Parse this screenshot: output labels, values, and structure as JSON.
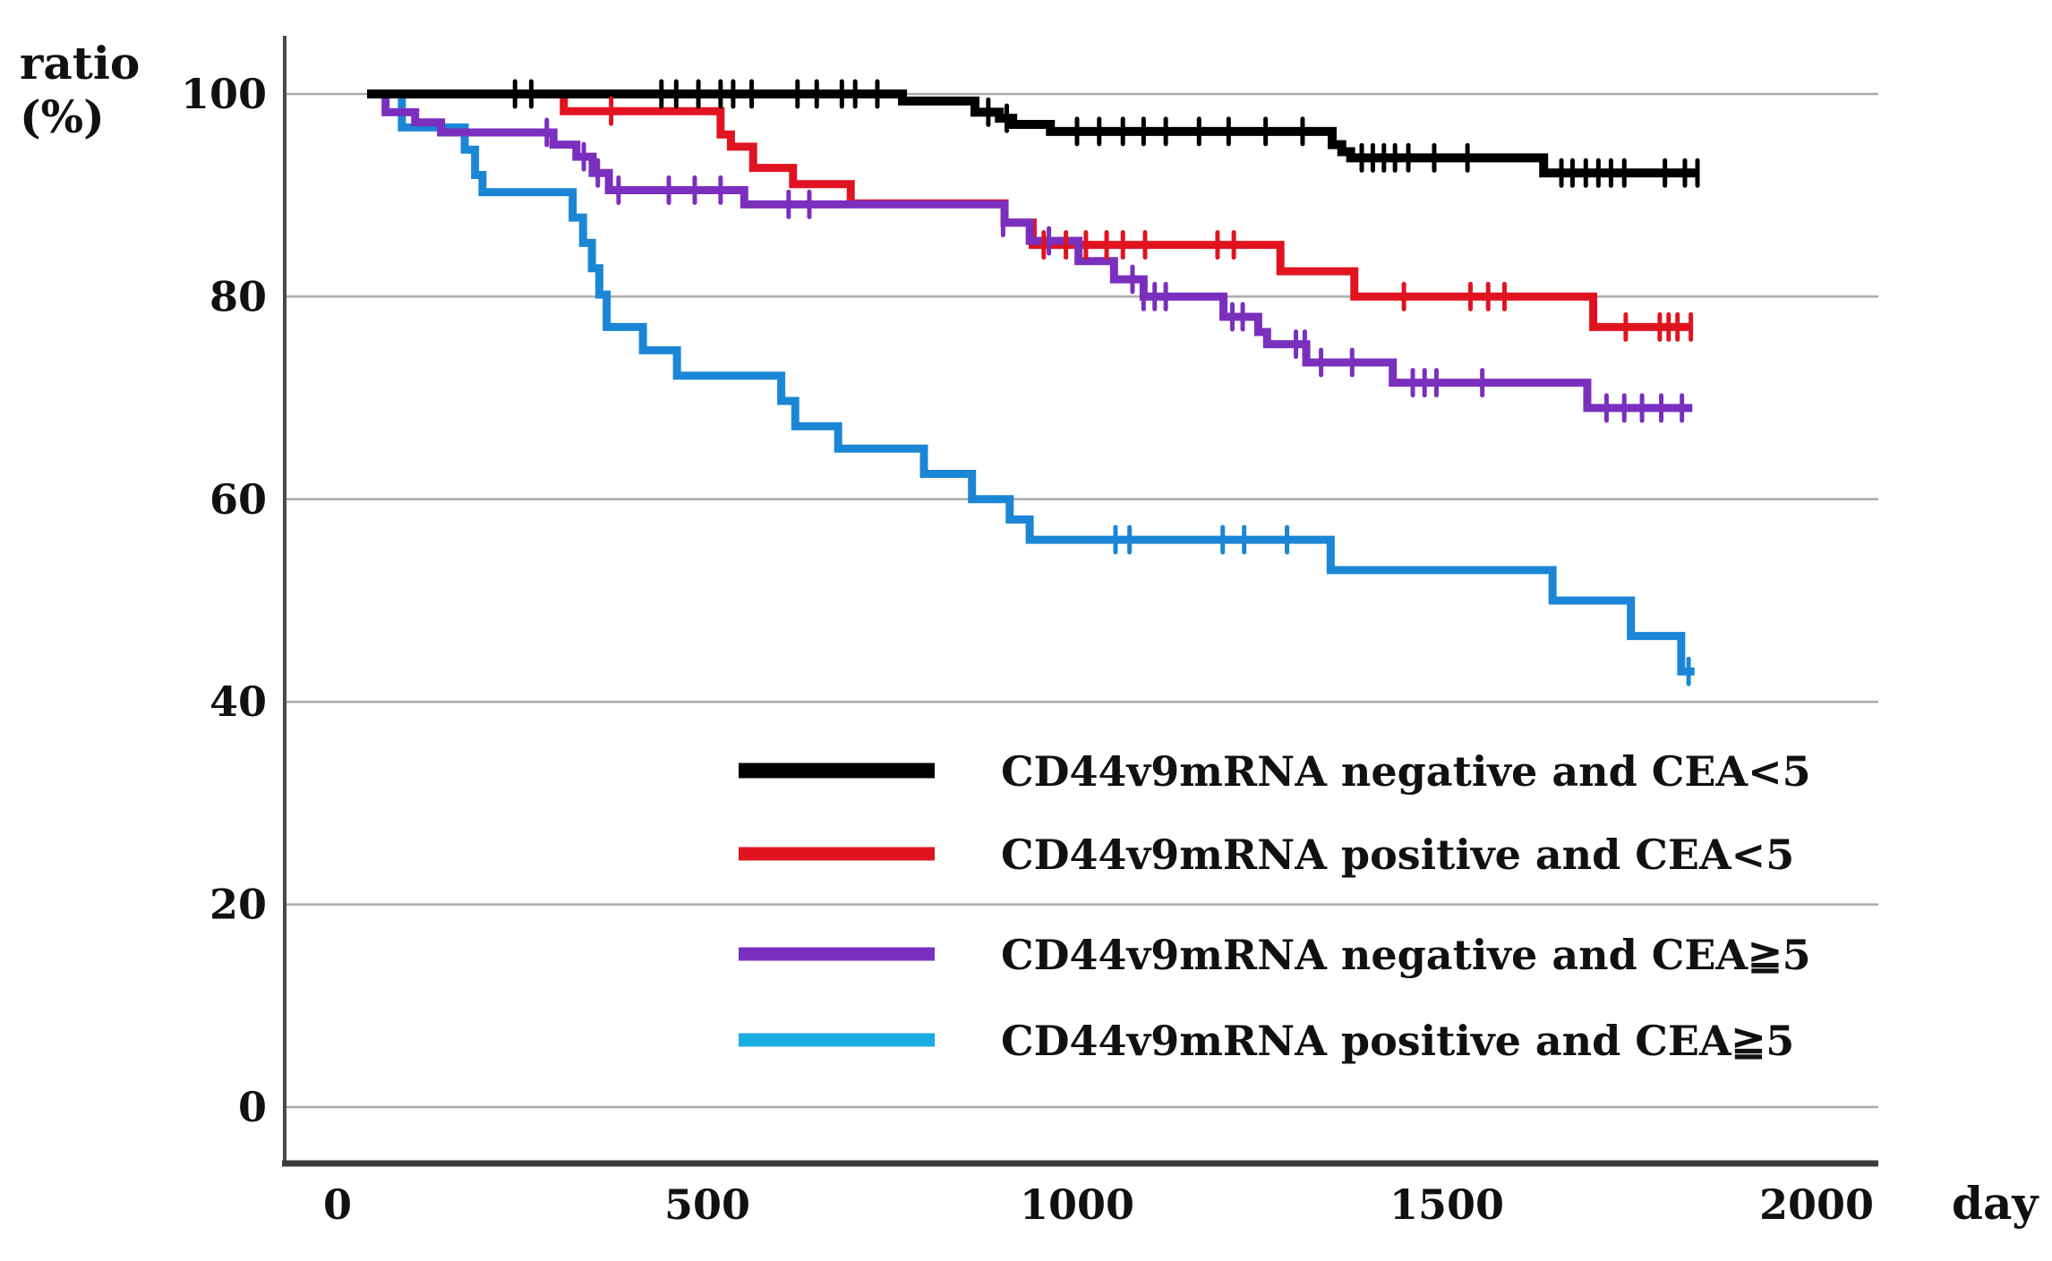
{
  "labels": {
    "y_axis_title_line1": "ratio",
    "y_axis_title_line2": "(%)",
    "x_axis_unit": "day"
  },
  "chart_data": {
    "type": "line",
    "subtype": "kaplan-meier-step-survival",
    "title": "",
    "xlabel": "day",
    "ylabel": "ratio (%)",
    "xlim": [
      0,
      2000
    ],
    "ylim": [
      0,
      100
    ],
    "xticks": [
      0,
      500,
      1000,
      1500,
      2000
    ],
    "yticks": [
      100,
      80,
      60,
      40,
      20,
      0
    ],
    "grid": "horizontal-only",
    "gridline_color": "#ababab",
    "axis_color": "#3c3c3c",
    "legend_position": "inside-lower-center-right",
    "series": [
      {
        "label": "CD44v9mRNA negative and CEA<5",
        "color": "#000000",
        "line_width": 10,
        "start_day": 40,
        "end_day": 1840,
        "steps": [
          [
            40,
            100
          ],
          [
            764,
            99.3
          ],
          [
            862,
            98.2
          ],
          [
            895,
            97.6
          ],
          [
            913,
            97.0
          ],
          [
            964,
            96.3
          ],
          [
            1345,
            95.0
          ],
          [
            1358,
            94.3
          ],
          [
            1370,
            93.7
          ],
          [
            1631,
            92.2
          ]
        ],
        "censor_marks": [
          [
            240,
            100
          ],
          [
            262,
            100
          ],
          [
            438,
            100
          ],
          [
            458,
            100
          ],
          [
            488,
            100
          ],
          [
            518,
            100
          ],
          [
            535,
            100
          ],
          [
            560,
            100
          ],
          [
            622,
            100
          ],
          [
            648,
            100
          ],
          [
            682,
            100
          ],
          [
            700,
            100
          ],
          [
            730,
            100
          ],
          [
            880,
            98.2
          ],
          [
            905,
            97.6
          ],
          [
            1000,
            96.3
          ],
          [
            1030,
            96.3
          ],
          [
            1062,
            96.3
          ],
          [
            1090,
            96.3
          ],
          [
            1120,
            96.3
          ],
          [
            1165,
            96.3
          ],
          [
            1205,
            96.3
          ],
          [
            1255,
            96.3
          ],
          [
            1305,
            96.3
          ],
          [
            1385,
            93.7
          ],
          [
            1400,
            93.7
          ],
          [
            1415,
            93.7
          ],
          [
            1430,
            93.7
          ],
          [
            1448,
            93.7
          ],
          [
            1483,
            93.7
          ],
          [
            1528,
            93.7
          ],
          [
            1655,
            92.2
          ],
          [
            1670,
            92.2
          ],
          [
            1688,
            92.2
          ],
          [
            1705,
            92.2
          ],
          [
            1722,
            92.2
          ],
          [
            1740,
            92.2
          ],
          [
            1795,
            92.2
          ],
          [
            1822,
            92.2
          ],
          [
            1839,
            92.2
          ]
        ]
      },
      {
        "label": "CD44v9mRNA positive and CEA<5",
        "color": "#e01420",
        "line_width": 9,
        "start_day": 40,
        "end_day": 1832,
        "steps": [
          [
            40,
            100
          ],
          [
            306,
            98.3
          ],
          [
            518,
            96.0
          ],
          [
            532,
            94.8
          ],
          [
            562,
            92.7
          ],
          [
            616,
            91.1
          ],
          [
            694,
            89.2
          ],
          [
            902,
            87.3
          ],
          [
            940,
            85.1
          ],
          [
            1275,
            82.5
          ],
          [
            1375,
            80.0
          ],
          [
            1698,
            77.0
          ]
        ],
        "censor_marks": [
          [
            370,
            98.3
          ],
          [
            955,
            85.1
          ],
          [
            985,
            85.1
          ],
          [
            1012,
            85.1
          ],
          [
            1040,
            85.1
          ],
          [
            1062,
            85.1
          ],
          [
            1092,
            85.1
          ],
          [
            1190,
            85.1
          ],
          [
            1212,
            85.1
          ],
          [
            1442,
            80
          ],
          [
            1532,
            80
          ],
          [
            1556,
            80
          ],
          [
            1578,
            80
          ],
          [
            1742,
            77
          ],
          [
            1788,
            77
          ],
          [
            1800,
            77
          ],
          [
            1812,
            77
          ],
          [
            1830,
            77
          ]
        ]
      },
      {
        "label": "CD44v9mRNA negative and CEA≧5",
        "color": "#7b2fbe",
        "line_width": 9,
        "start_day": 40,
        "end_day": 1832,
        "steps": [
          [
            40,
            100
          ],
          [
            65,
            98.2
          ],
          [
            105,
            97.2
          ],
          [
            140,
            96.2
          ],
          [
            292,
            95.0
          ],
          [
            323,
            93.8
          ],
          [
            345,
            92.2
          ],
          [
            367,
            90.5
          ],
          [
            550,
            89.1
          ],
          [
            902,
            87.3
          ],
          [
            936,
            85.5
          ],
          [
            1002,
            83.5
          ],
          [
            1050,
            81.7
          ],
          [
            1090,
            80.0
          ],
          [
            1198,
            78.0
          ],
          [
            1245,
            76.5
          ],
          [
            1257,
            75.3
          ],
          [
            1310,
            73.5
          ],
          [
            1427,
            71.5
          ],
          [
            1690,
            69.0
          ]
        ],
        "censor_marks": [
          [
            283,
            96.2
          ],
          [
            333,
            93.8
          ],
          [
            352,
            92.2
          ],
          [
            380,
            90.5
          ],
          [
            448,
            90.5
          ],
          [
            483,
            90.5
          ],
          [
            518,
            90.5
          ],
          [
            610,
            89.1
          ],
          [
            638,
            89.1
          ],
          [
            900,
            87.3
          ],
          [
            962,
            85.5
          ],
          [
            1075,
            81.7
          ],
          [
            1090,
            80
          ],
          [
            1105,
            80
          ],
          [
            1120,
            80
          ],
          [
            1210,
            78
          ],
          [
            1224,
            78
          ],
          [
            1296,
            75.3
          ],
          [
            1308,
            75.3
          ],
          [
            1330,
            73.5
          ],
          [
            1372,
            73.5
          ],
          [
            1454,
            71.5
          ],
          [
            1470,
            71.5
          ],
          [
            1486,
            71.5
          ],
          [
            1548,
            71.5
          ],
          [
            1716,
            69
          ],
          [
            1740,
            69
          ],
          [
            1764,
            69
          ],
          [
            1790,
            69
          ],
          [
            1818,
            69
          ]
        ]
      },
      {
        "label": "CD44v9mRNA positive and CEA≧5",
        "color": "#1b86d6",
        "legend_color": "#19ace2",
        "line_width": 9,
        "start_day": 40,
        "end_day": 1835,
        "steps": [
          [
            40,
            100
          ],
          [
            87,
            96.7
          ],
          [
            172,
            94.5
          ],
          [
            186,
            92.0
          ],
          [
            196,
            90.3
          ],
          [
            318,
            87.8
          ],
          [
            332,
            85.3
          ],
          [
            344,
            82.8
          ],
          [
            354,
            80.2
          ],
          [
            364,
            77.0
          ],
          [
            413,
            74.7
          ],
          [
            459,
            72.2
          ],
          [
            600,
            69.7
          ],
          [
            619,
            67.2
          ],
          [
            677,
            65.0
          ],
          [
            793,
            62.5
          ],
          [
            858,
            60.0
          ],
          [
            909,
            58.0
          ],
          [
            936,
            56.0
          ],
          [
            1343,
            53.0
          ],
          [
            1643,
            50.0
          ],
          [
            1749,
            46.5
          ],
          [
            1817,
            43.0
          ]
        ],
        "censor_marks": [
          [
            1052,
            56
          ],
          [
            1071,
            56
          ],
          [
            1197,
            56
          ],
          [
            1226,
            56
          ],
          [
            1284,
            56
          ],
          [
            1827,
            43
          ]
        ]
      }
    ]
  }
}
